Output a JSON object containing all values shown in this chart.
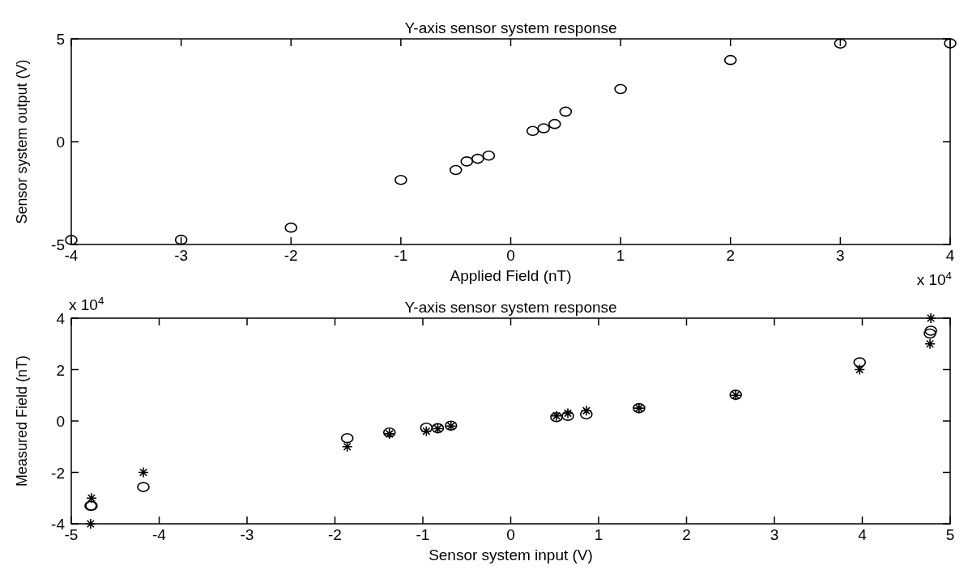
{
  "chart_data": [
    {
      "type": "scatter",
      "title": "Y-axis sensor system response",
      "xlabel": "Applied Field (nT)",
      "ylabel": "Sensor system output (V)",
      "annotations": [
        "x 10$^{4}$"
      ],
      "xlim": [
        -4,
        4
      ],
      "ylim": [
        -5,
        5
      ],
      "xticks": [
        -4,
        -3,
        -2,
        -1,
        0,
        1,
        2,
        3,
        4
      ],
      "yticks": [
        -5,
        0,
        5
      ],
      "grid": false,
      "series": [
        {
          "marker": "circle",
          "color": "#000000",
          "x": [
            -4,
            -3,
            -2,
            -1,
            -0.5,
            -0.4,
            -0.3,
            -0.2,
            0.2,
            0.3,
            0.4,
            0.5,
            1,
            2,
            3,
            4
          ],
          "values": [
            -4.78,
            -4.77,
            -4.18,
            -1.86,
            -1.38,
            -0.96,
            -0.83,
            -0.68,
            0.52,
            0.65,
            0.86,
            1.46,
            2.56,
            3.97,
            4.77,
            4.78
          ]
        }
      ]
    },
    {
      "type": "scatter",
      "title": "Y-axis sensor system response",
      "xlabel": "Sensor system input (V)",
      "ylabel": "Measured Field (nT)",
      "annotations": [
        "x 10$^{4}$"
      ],
      "xlim": [
        -5,
        5
      ],
      "ylim": [
        -4,
        4
      ],
      "xticks": [
        -5,
        -4,
        -3,
        -2,
        -1,
        0,
        1,
        2,
        3,
        4,
        5
      ],
      "yticks": [
        -4,
        -2,
        0,
        2,
        4
      ],
      "grid": false,
      "series": [
        {
          "marker": "circle",
          "color": "#000000",
          "x": [
            -4.78,
            -4.77,
            -4.18,
            -1.86,
            -1.38,
            -0.96,
            -0.83,
            -0.68,
            0.52,
            0.65,
            0.86,
            1.46,
            2.56,
            3.97,
            4.77,
            4.78
          ],
          "values": [
            -3.3,
            -3.3,
            -2.57,
            -0.67,
            -0.45,
            -0.26,
            -0.28,
            -0.18,
            0.15,
            0.2,
            0.26,
            0.5,
            1.02,
            2.28,
            3.4,
            3.51
          ]
        },
        {
          "marker": "cross",
          "color": "#000000",
          "x": [
            -4.78,
            -4.77,
            -4.18,
            -1.86,
            -1.38,
            -0.96,
            -0.83,
            -0.68,
            0.52,
            0.65,
            0.86,
            1.46,
            2.56,
            3.97,
            4.77,
            4.78
          ],
          "values": [
            -4,
            -3,
            -2,
            -1,
            -0.5,
            -0.4,
            -0.3,
            -0.2,
            0.2,
            0.3,
            0.4,
            0.5,
            1,
            2,
            3,
            4
          ]
        }
      ]
    }
  ]
}
